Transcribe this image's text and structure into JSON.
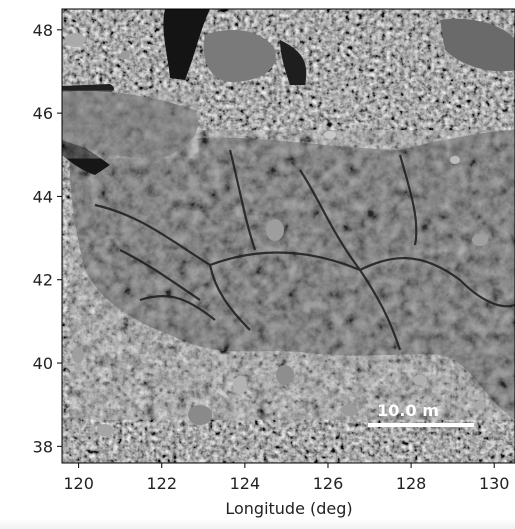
{
  "chart_data": {
    "type": "image",
    "xlabel": "Longitude (deg)",
    "ylabel": "",
    "xlim": [
      119.6,
      130.5
    ],
    "ylim": [
      37.6,
      48.5
    ],
    "xticks": [
      120,
      122,
      124,
      126,
      128,
      130
    ],
    "yticks": [
      38,
      40,
      42,
      44,
      46,
      48
    ],
    "xtick_labels": [
      "120",
      "122",
      "124",
      "126",
      "128",
      "130"
    ],
    "ytick_labels": [
      "38",
      "40",
      "42",
      "44",
      "46",
      "48"
    ],
    "scale_bar": {
      "label": "10.0 m",
      "color": "#ffffff"
    },
    "image_description_colors": {
      "base": "#5a5a5a",
      "light": "#9a9a9a",
      "dark": "#1e1e1e"
    }
  }
}
